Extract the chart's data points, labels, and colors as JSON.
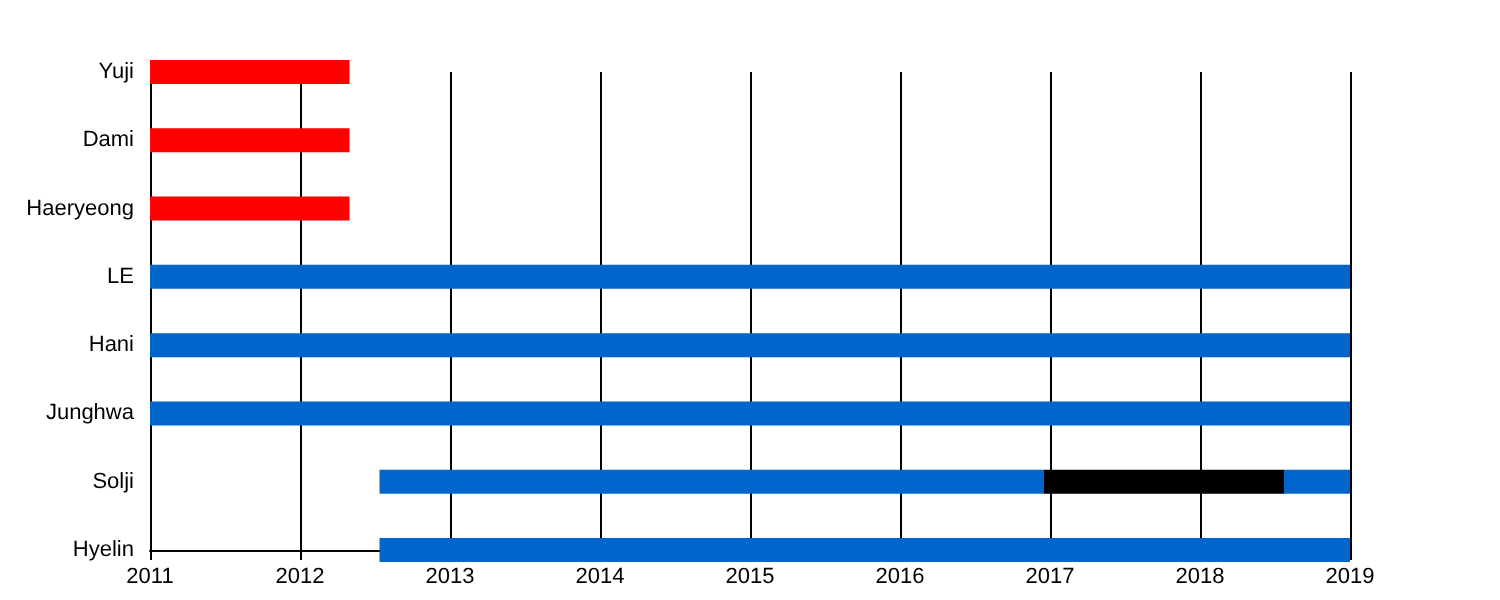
{
  "chart_data": {
    "type": "bar",
    "orientation": "horizontal",
    "categories": [
      "Yuji",
      "Dami",
      "Haeryeong",
      "LE",
      "Hani",
      "Junghwa",
      "Solji",
      "Hyelin"
    ],
    "series": [
      {
        "color": "#ff0000",
        "base": [
          2011,
          2011,
          2011,
          null,
          null,
          null,
          null,
          null
        ],
        "values": [
          1.33,
          1.33,
          1.33,
          null,
          null,
          null,
          null,
          null
        ]
      },
      {
        "color": "#0066cc",
        "base": [
          null,
          null,
          null,
          2011,
          2011,
          2011,
          2012.53,
          2012.53
        ],
        "values": [
          null,
          null,
          null,
          8,
          8,
          8,
          4.43,
          6.47
        ]
      },
      {
        "color": "#000000",
        "base": [
          null,
          null,
          null,
          null,
          null,
          null,
          2016.96,
          null
        ],
        "values": [
          null,
          null,
          null,
          null,
          null,
          null,
          1.6,
          null
        ]
      },
      {
        "color": "#0066cc",
        "base": [
          null,
          null,
          null,
          null,
          null,
          null,
          2018.56,
          null
        ],
        "values": [
          null,
          null,
          null,
          null,
          null,
          null,
          0.44,
          null
        ]
      }
    ],
    "xlim": [
      2011,
      2019
    ],
    "xticks": [
      2011,
      2012,
      2013,
      2014,
      2015,
      2016,
      2017,
      2018,
      2019
    ],
    "grid": "x"
  }
}
